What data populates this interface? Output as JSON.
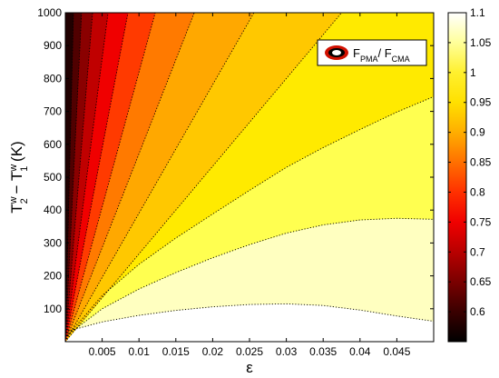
{
  "chart_data": {
    "type": "heatmap",
    "subtype": "filled-contour",
    "title": "",
    "xlabel": "ε",
    "ylabel": {
      "base1": "T",
      "sup1": "w",
      "sub1": "2",
      "mid": " − ",
      "base2": "T",
      "sup2": "w",
      "sub2": "1",
      "unit": " (K)"
    },
    "xlim": [
      0,
      0.05
    ],
    "ylim": [
      0,
      1000
    ],
    "xticks": [
      0.005,
      0.01,
      0.015,
      0.02,
      0.025,
      0.03,
      0.035,
      0.04,
      0.045
    ],
    "xtick_labels": [
      "0.005",
      "0.01",
      "0.015",
      "0.02",
      "0.025",
      "0.03",
      "0.035",
      "0.04",
      "0.045"
    ],
    "yticks": [
      100,
      200,
      300,
      400,
      500,
      600,
      700,
      800,
      900,
      1000
    ],
    "ytick_labels": [
      "100",
      "200",
      "300",
      "400",
      "500",
      "600",
      "700",
      "800",
      "900",
      "1000"
    ],
    "colormap": "hot",
    "colorbar": {
      "range": [
        0.55,
        1.1
      ],
      "ticks": [
        0.6,
        0.65,
        0.7,
        0.75,
        0.8,
        0.85,
        0.9,
        0.95,
        1,
        1.05,
        1.1
      ],
      "tick_labels": [
        "0.6",
        "0.65",
        "0.7",
        "0.75",
        "0.8",
        "0.85",
        "0.9",
        "0.95",
        "1",
        "1.05",
        "1.1"
      ],
      "stops": [
        {
          "v": 0.55,
          "color": "#000000"
        },
        {
          "v": 0.6,
          "color": "#3a0000"
        },
        {
          "v": 0.65,
          "color": "#7a0000"
        },
        {
          "v": 0.7,
          "color": "#b80000"
        },
        {
          "v": 0.75,
          "color": "#f00000"
        },
        {
          "v": 0.8,
          "color": "#ff3000"
        },
        {
          "v": 0.85,
          "color": "#ff7000"
        },
        {
          "v": 0.9,
          "color": "#ffae00"
        },
        {
          "v": 0.95,
          "color": "#ffe000"
        },
        {
          "v": 1.0,
          "color": "#fff02e"
        },
        {
          "v": 1.05,
          "color": "#ffff9a"
        },
        {
          "v": 1.1,
          "color": "#ffffff"
        }
      ]
    },
    "regions": [
      {
        "level": 1.075,
        "color": "#ffffff"
      },
      {
        "level": 1.025,
        "color": "#ffffc0"
      },
      {
        "level": 0.975,
        "color": "#ffff50"
      },
      {
        "level": 0.925,
        "color": "#ffea00"
      },
      {
        "level": 0.875,
        "color": "#ffc800"
      },
      {
        "level": 0.825,
        "color": "#ffa800"
      },
      {
        "level": 0.775,
        "color": "#ff7a00"
      },
      {
        "level": 0.725,
        "color": "#ff3a00"
      },
      {
        "level": 0.675,
        "color": "#f00000"
      },
      {
        "level": 0.625,
        "color": "#c00000"
      },
      {
        "level": 0.575,
        "color": "#8a0000"
      },
      {
        "level": 0.54,
        "color": "#500000"
      },
      {
        "level": 0.5,
        "color": "#200000"
      }
    ],
    "contours": [
      {
        "level": 1.05,
        "shape": "curve",
        "points": [
          [
            0.0,
            30
          ],
          [
            0.005,
            60
          ],
          [
            0.01,
            80
          ],
          [
            0.015,
            95
          ],
          [
            0.02,
            106
          ],
          [
            0.025,
            113
          ],
          [
            0.03,
            115
          ],
          [
            0.035,
            110
          ],
          [
            0.04,
            96
          ],
          [
            0.045,
            78
          ],
          [
            0.05,
            62
          ]
        ]
      },
      {
        "level": 1.0,
        "shape": "curve",
        "points": [
          [
            0.0,
            15
          ],
          [
            0.005,
            100
          ],
          [
            0.01,
            160
          ],
          [
            0.015,
            210
          ],
          [
            0.02,
            255
          ],
          [
            0.025,
            295
          ],
          [
            0.03,
            330
          ],
          [
            0.035,
            355
          ],
          [
            0.04,
            370
          ],
          [
            0.045,
            375
          ],
          [
            0.05,
            372
          ]
        ]
      },
      {
        "level": 0.95,
        "shape": "curve",
        "points": [
          [
            0.0,
            10
          ],
          [
            0.005,
            140
          ],
          [
            0.01,
            235
          ],
          [
            0.015,
            315
          ],
          [
            0.02,
            388
          ],
          [
            0.025,
            460
          ],
          [
            0.03,
            530
          ],
          [
            0.035,
            590
          ],
          [
            0.04,
            645
          ],
          [
            0.045,
            698
          ],
          [
            0.05,
            745
          ]
        ]
      },
      {
        "level": 0.9,
        "shape": "ray",
        "slope_x_at_1000": 0.0375
      },
      {
        "level": 0.85,
        "shape": "ray",
        "slope_x_at_1000": 0.0256
      },
      {
        "level": 0.8,
        "shape": "ray",
        "slope_x_at_1000": 0.0175
      },
      {
        "level": 0.75,
        "shape": "ray",
        "slope_x_at_1000": 0.0122
      },
      {
        "level": 0.7,
        "shape": "ray",
        "slope_x_at_1000": 0.0085
      },
      {
        "level": 0.65,
        "shape": "ray",
        "slope_x_at_1000": 0.0058
      },
      {
        "level": 0.6,
        "shape": "ray",
        "slope_x_at_1000": 0.0037
      },
      {
        "level": 0.55,
        "shape": "ray",
        "slope_x_at_1000": 0.0022
      },
      {
        "level": 0.52,
        "shape": "ray",
        "slope_x_at_1000": 0.0011
      }
    ],
    "legend": {
      "placement": "top-right",
      "label": {
        "base1": "F",
        "sub1": "PMA",
        "sep": "/ ",
        "base2": "F",
        "sub2": "CMA"
      },
      "marker_outer": "#d01000",
      "marker_mid": "#000000",
      "marker_inner": "#ffffff"
    }
  }
}
